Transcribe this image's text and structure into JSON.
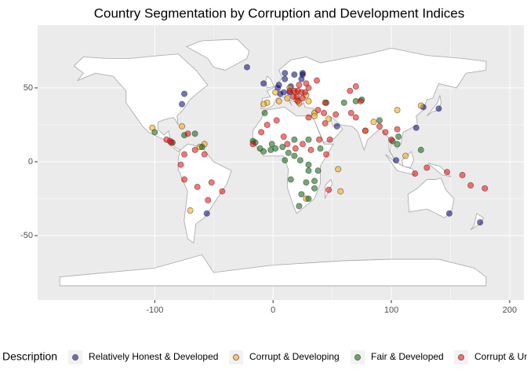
{
  "chart_data": {
    "type": "scatter",
    "title": "Country Segmentation by Corruption and Development Indices",
    "legend_title": "Description",
    "legend_position": "bottom",
    "grid": true,
    "xlim": [
      -199,
      212
    ],
    "ylim": [
      -93.6,
      92.5
    ],
    "xticks": [
      -100,
      0,
      100,
      200
    ],
    "yticks": [
      -50,
      0,
      50
    ],
    "series": [
      {
        "name": "Relatively Honest & Developed",
        "color": "#00008b",
        "x": [
          -75,
          -77,
          -56,
          -22,
          10,
          18,
          25,
          10,
          5,
          15,
          9,
          -8,
          25,
          140,
          127,
          149,
          175,
          121,
          104,
          54,
          4,
          14,
          24,
          6
        ],
        "y": [
          46,
          39,
          -35,
          64,
          60,
          59,
          60,
          56,
          52,
          51,
          47,
          53,
          59,
          36,
          37,
          -35,
          -41,
          23,
          1,
          24,
          50,
          47,
          56,
          46
        ]
      },
      {
        "name": "Corrupt & Developing",
        "color": "#ffa500",
        "x": [
          -70,
          -102,
          -77,
          -62,
          -58,
          -5,
          -8,
          5,
          12,
          20,
          22,
          28,
          19,
          14,
          30,
          35,
          35,
          57,
          55,
          28,
          112,
          105,
          125,
          85,
          78,
          47,
          2
        ],
        "y": [
          -33,
          23,
          24,
          10,
          12,
          40,
          39,
          41,
          43,
          42,
          40,
          45,
          47,
          50,
          41,
          33,
          31,
          -20,
          -5,
          -25,
          4,
          35,
          38,
          27,
          21,
          29,
          47
        ]
      },
      {
        "name": "Fair & Developed",
        "color": "#006400",
        "x": [
          -15,
          -11,
          -8,
          -2,
          2,
          -1,
          8,
          13,
          18,
          23,
          30,
          30,
          35,
          28,
          24,
          30,
          35,
          38,
          40,
          30,
          18,
          10,
          15,
          -17,
          -7,
          45,
          60,
          70,
          75,
          90,
          101,
          105,
          106,
          125,
          -100,
          -75,
          -85,
          -66,
          -60,
          22
        ],
        "y": [
          13,
          9,
          7,
          8,
          9,
          12,
          10,
          6,
          4,
          1,
          -2,
          -6,
          -13,
          -14,
          -22,
          -25,
          -18,
          -6,
          9,
          15,
          15,
          1,
          -12,
          14,
          33,
          40,
          40,
          41,
          42,
          28,
          14,
          12,
          17,
          8,
          20,
          18,
          13,
          19,
          10,
          -30
        ]
      },
      {
        "name": "Corrupt & Underdeveloped",
        "color": "#ff0000",
        "x": [
          14,
          18,
          21,
          24,
          27,
          20,
          17,
          21,
          25,
          22,
          30,
          37,
          28,
          44,
          -10,
          -5,
          3,
          -17,
          9,
          12,
          19,
          45,
          39,
          32,
          25,
          30,
          47,
          53,
          66,
          70,
          90,
          78,
          95,
          100,
          105,
          70,
          65,
          74,
          38,
          43,
          48,
          44,
          -90,
          -87,
          -86,
          -72,
          -75,
          -78,
          -66,
          -58,
          -64,
          -55,
          -75,
          -43,
          -52,
          147,
          160,
          167,
          179,
          120,
          130
        ],
        "y": [
          48,
          48,
          48,
          47,
          47,
          44,
          44,
          41,
          43,
          52,
          50,
          55,
          53,
          40,
          20,
          25,
          28,
          12,
          17,
          12,
          9,
          5,
          15,
          8,
          12,
          30,
          -19,
          32,
          33,
          30,
          24,
          21,
          20,
          15,
          22,
          51,
          48,
          41,
          35,
          33,
          15,
          26,
          15,
          14,
          13,
          19,
          5,
          -2,
          8,
          5,
          -17,
          -26,
          -12,
          -20,
          -14,
          -7,
          -9,
          -16,
          -18,
          -8,
          -4
        ]
      }
    ]
  }
}
